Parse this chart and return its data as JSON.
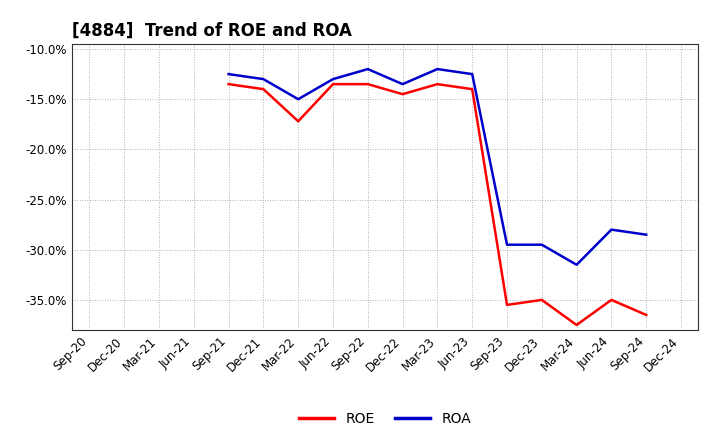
{
  "title": "[4884]  Trend of ROE and ROA",
  "x_labels": [
    "Sep-20",
    "Dec-20",
    "Mar-21",
    "Jun-21",
    "Sep-21",
    "Dec-21",
    "Mar-22",
    "Jun-22",
    "Sep-22",
    "Dec-22",
    "Mar-23",
    "Jun-23",
    "Sep-23",
    "Dec-23",
    "Mar-24",
    "Jun-24",
    "Sep-24",
    "Dec-24"
  ],
  "roe_values": [
    null,
    null,
    null,
    null,
    -13.5,
    -14.0,
    -17.2,
    -13.5,
    -13.5,
    -14.5,
    -13.5,
    -14.0,
    -35.5,
    -35.0,
    -37.5,
    -35.0,
    -36.5,
    null
  ],
  "roa_values": [
    null,
    null,
    null,
    null,
    -12.5,
    -13.0,
    -15.0,
    -13.0,
    -12.0,
    -13.5,
    -12.0,
    -12.5,
    -29.5,
    -29.5,
    -31.5,
    -28.0,
    -28.5,
    null
  ],
  "ylim": [
    -38,
    -9.5
  ],
  "yticks": [
    -10.0,
    -15.0,
    -20.0,
    -25.0,
    -30.0,
    -35.0
  ],
  "roe_color": "#ff0000",
  "roa_color": "#0000cc",
  "background_color": "#ffffff",
  "grid_color": "#999999",
  "line_width": 1.8,
  "title_fontsize": 12,
  "tick_fontsize": 8.5
}
